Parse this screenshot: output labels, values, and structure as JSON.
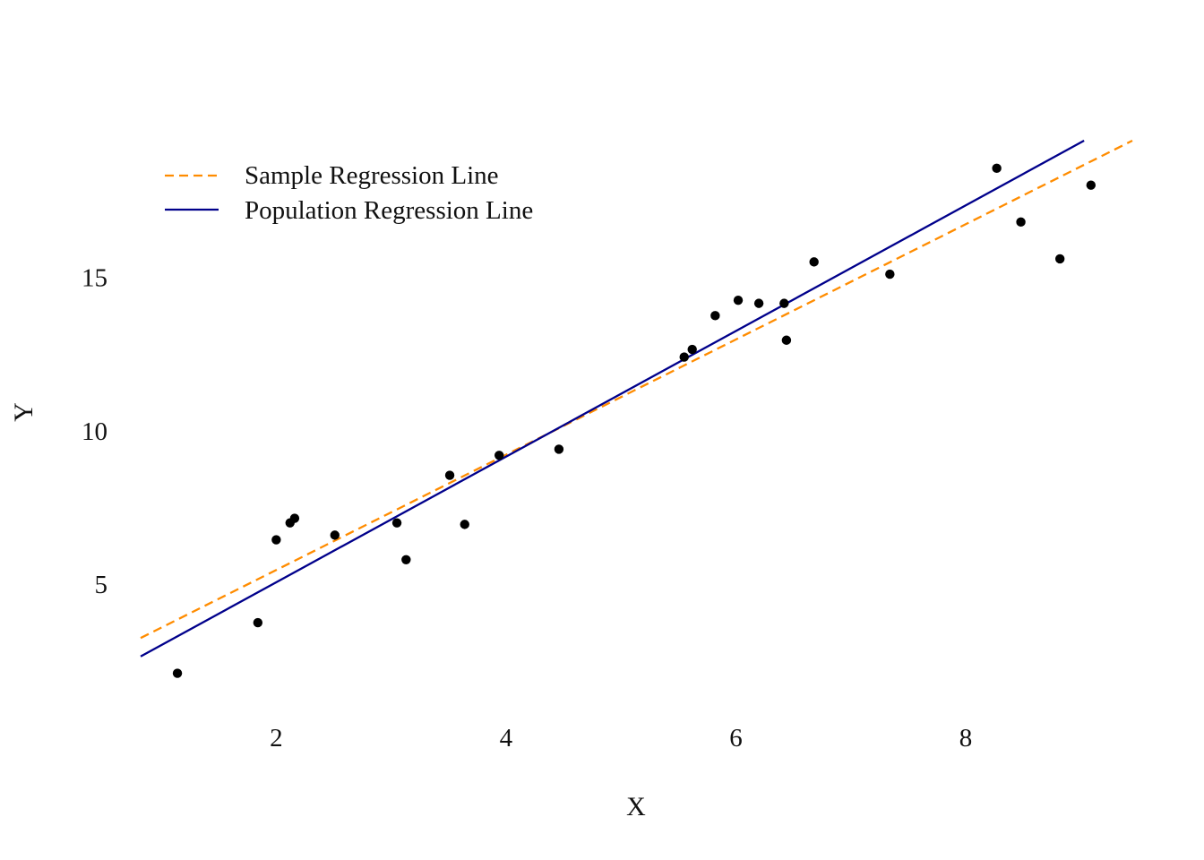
{
  "chart_data": {
    "type": "scatter",
    "title": "",
    "xlabel": "X",
    "ylabel": "Y",
    "xlim": [
      0.82,
      9.45
    ],
    "ylim": [
      0.25,
      19.45
    ],
    "x_ticks": [
      2,
      4,
      6,
      8
    ],
    "x_tick_labels": [
      "2",
      "4",
      "6",
      "8"
    ],
    "y_ticks": [
      5,
      10,
      15
    ],
    "y_tick_labels": [
      "5",
      "10",
      "15"
    ],
    "grid": false,
    "legend_position": "top-left",
    "points": [
      {
        "x": 1.14,
        "y": 2.1
      },
      {
        "x": 1.84,
        "y": 3.75
      },
      {
        "x": 2.0,
        "y": 6.45
      },
      {
        "x": 2.12,
        "y": 7.0
      },
      {
        "x": 2.16,
        "y": 7.15
      },
      {
        "x": 2.51,
        "y": 6.6
      },
      {
        "x": 3.05,
        "y": 7.0
      },
      {
        "x": 3.13,
        "y": 5.8
      },
      {
        "x": 3.51,
        "y": 8.55
      },
      {
        "x": 3.64,
        "y": 6.95
      },
      {
        "x": 3.94,
        "y": 9.2
      },
      {
        "x": 4.46,
        "y": 9.4
      },
      {
        "x": 5.55,
        "y": 12.4
      },
      {
        "x": 5.62,
        "y": 12.65
      },
      {
        "x": 5.82,
        "y": 13.75
      },
      {
        "x": 6.02,
        "y": 14.25
      },
      {
        "x": 6.2,
        "y": 14.15
      },
      {
        "x": 6.42,
        "y": 14.15
      },
      {
        "x": 6.44,
        "y": 12.95
      },
      {
        "x": 6.68,
        "y": 15.5
      },
      {
        "x": 7.34,
        "y": 15.1
      },
      {
        "x": 8.27,
        "y": 18.55
      },
      {
        "x": 8.48,
        "y": 16.8
      },
      {
        "x": 8.82,
        "y": 15.6
      },
      {
        "x": 9.09,
        "y": 18.0
      }
    ],
    "series": [
      {
        "name": "Sample Regression Line",
        "style": "dashed",
        "color": "#ff8c00",
        "x": [
          0.82,
          9.45
        ],
        "y": [
          3.25,
          19.45
        ]
      },
      {
        "name": "Population Regression Line",
        "style": "solid",
        "color": "#00008b",
        "x": [
          0.82,
          9.03
        ],
        "y": [
          2.65,
          19.45
        ]
      }
    ],
    "point_color": "#000000"
  }
}
